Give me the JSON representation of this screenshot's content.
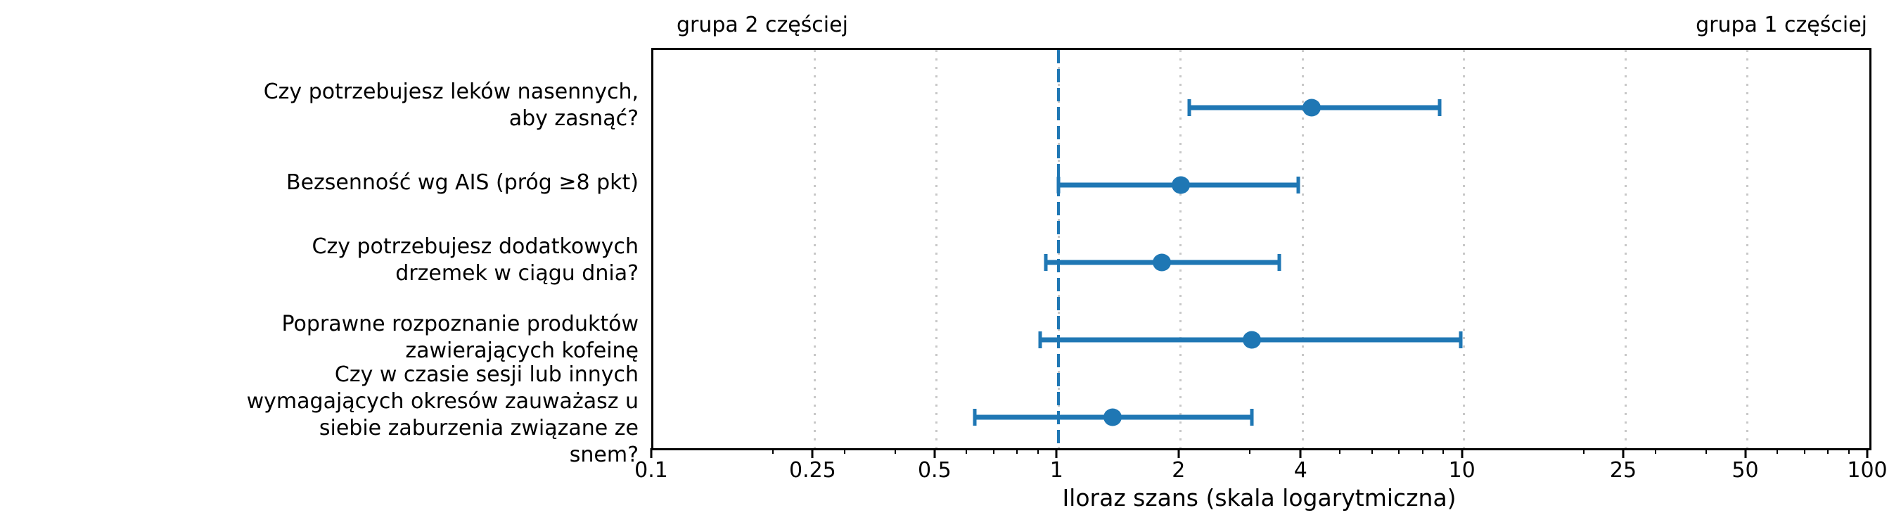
{
  "chart_data": {
    "type": "scatter",
    "variant": "forest-plot",
    "title": "",
    "xlabel": "Iloraz szans (skala logarytmiczna)",
    "x_scale": "log",
    "xlim": [
      0.1,
      100
    ],
    "x_major_ticks": [
      0.1,
      0.25,
      0.5,
      1,
      2,
      4,
      10,
      25,
      50,
      100
    ],
    "x_major_tick_labels": [
      "0.1",
      "0.25",
      "0.5",
      "1",
      "2",
      "4",
      "10",
      "25",
      "50",
      "100"
    ],
    "x_minor_ticks": [
      0.2,
      0.3,
      0.4,
      0.6,
      0.7,
      0.8,
      0.9,
      3,
      5,
      6,
      7,
      8,
      9,
      20,
      30,
      40,
      60,
      70,
      80,
      90
    ],
    "reference_line_x": 1,
    "left_header": "grupa 2 częściej",
    "right_header": "grupa 1 częściej",
    "grid": "vertical dotted lines at major ticks",
    "legend": "none",
    "rows": [
      {
        "label": "Czy potrzebujesz leków nasennych, aby zasnąć?",
        "label_lines": [
          "Czy potrzebujesz leków nasennych,",
          "aby zasnąć?"
        ],
        "odds_ratio": 4.2,
        "ci_low": 2.1,
        "ci_high": 8.7
      },
      {
        "label": "Bezsenność wg AIS (próg ≥8 pkt)",
        "label_lines": [
          "Bezsenność wg AIS (próg ≥8 pkt)"
        ],
        "odds_ratio": 2.0,
        "ci_low": 1.0,
        "ci_high": 3.9
      },
      {
        "label": "Czy potrzebujesz dodatkowych drzemek w ciągu dnia?",
        "label_lines": [
          "Czy potrzebujesz dodatkowych",
          "drzemek w ciągu dnia?"
        ],
        "odds_ratio": 1.8,
        "ci_low": 0.93,
        "ci_high": 3.5
      },
      {
        "label": "Poprawne rozpoznanie produktów zawierających kofeinę",
        "label_lines": [
          "Poprawne rozpoznanie produktów",
          "zawierających kofeinę"
        ],
        "odds_ratio": 3.0,
        "ci_low": 0.9,
        "ci_high": 9.8
      },
      {
        "label": "Czy w czasie sesji lub innych wymagających okresów zauważasz u siebie zaburzenia związane ze snem?",
        "label_lines": [
          "Czy w czasie sesji lub innych",
          "wymagających okresów zauważasz u",
          "siebie zaburzenia związane ze",
          "snem?"
        ],
        "odds_ratio": 1.36,
        "ci_low": 0.62,
        "ci_high": 3.0
      }
    ],
    "colors": {
      "series": "#1f77b4",
      "reference_line": "#1f77b4",
      "grid": "#c8c8c8",
      "text": "#000000"
    }
  }
}
